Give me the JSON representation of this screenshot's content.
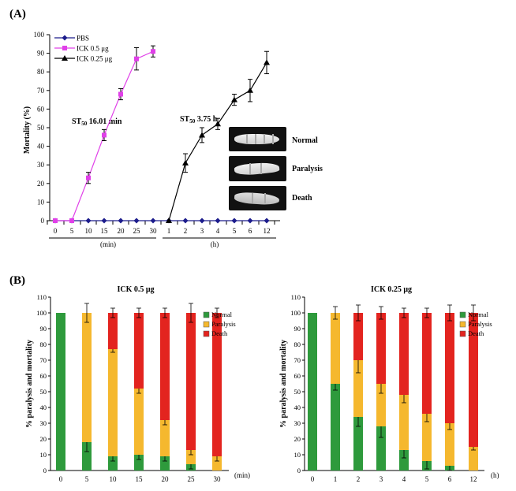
{
  "panel_a": {
    "label": "(A)",
    "ylabel": "Mortality  (%)",
    "yticks": [
      "0",
      "10",
      "20",
      "30",
      "40",
      "50",
      "60",
      "70",
      "80",
      "90",
      "100"
    ],
    "min_ticks": [
      "0",
      "5",
      "10",
      "15",
      "20",
      "25",
      "30"
    ],
    "h_ticks": [
      "1",
      "2",
      "3",
      "4",
      "5",
      "6",
      "12"
    ],
    "min_unit": "(min)",
    "h_unit": "(h)",
    "st50_left": {
      "prefix": "ST",
      "sub": "50",
      "value": " 16.01 min"
    },
    "st50_right": {
      "prefix": "ST",
      "sub": "50",
      "value": " 3.75 h"
    },
    "photo_labels": [
      "Normal",
      "Paralysis",
      "Death"
    ]
  },
  "panel_b": {
    "label": "(B)",
    "ylabel": "% paralysis and mortality",
    "yticks": [
      "0",
      "10",
      "20",
      "30",
      "40",
      "50",
      "60",
      "70",
      "80",
      "90",
      "100",
      "110"
    ],
    "left": {
      "title": "ICK 0.5 μg",
      "xticks": [
        "0",
        "5",
        "10",
        "15",
        "20",
        "25",
        "30"
      ],
      "unit": "(min)"
    },
    "right": {
      "title": "ICK 0.25 μg",
      "xticks": [
        "0",
        "1",
        "2",
        "3",
        "4",
        "5",
        "6",
        "12"
      ],
      "unit": "(h)"
    },
    "legend": [
      "Normal",
      "Paralysis",
      "Death"
    ]
  },
  "colors": {
    "pbs": "#1c1c8c",
    "ick05": "#e040e8",
    "ick025": "#000000",
    "normal": "#2e9a3c",
    "paralysis": "#f5b82e",
    "death": "#e3241f"
  },
  "chart_data": [
    {
      "type": "line",
      "title": "",
      "ylabel": "Mortality  (%)",
      "ylim": [
        0,
        100
      ],
      "x": [
        "0",
        "5",
        "10",
        "15",
        "20",
        "25",
        "30",
        "1",
        "2",
        "3",
        "4",
        "5",
        "6",
        "12"
      ],
      "series": [
        {
          "name": "PBS",
          "values": [
            0,
            0,
            0,
            0,
            0,
            0,
            0,
            0,
            0,
            0,
            0,
            0,
            0,
            0
          ],
          "errors": [
            0,
            0,
            0,
            0,
            0,
            0,
            0,
            0,
            0,
            0,
            0,
            0,
            0,
            0
          ]
        },
        {
          "name": "ICK 0.5 μg",
          "values": [
            0,
            0,
            23,
            46,
            68,
            87,
            91,
            null,
            null,
            null,
            null,
            null,
            null,
            null
          ],
          "errors": [
            0,
            0,
            3,
            3,
            3,
            6,
            3,
            null,
            null,
            null,
            null,
            null,
            null,
            null
          ]
        },
        {
          "name": "ICK 0.25 μg",
          "values": [
            null,
            null,
            null,
            null,
            null,
            null,
            null,
            0,
            31,
            46,
            52,
            65,
            70,
            85
          ],
          "errors": [
            null,
            null,
            null,
            null,
            null,
            null,
            null,
            0,
            5,
            4,
            3,
            3,
            6,
            6
          ]
        }
      ]
    },
    {
      "type": "bar",
      "stacked": true,
      "title": "ICK 0.5 μg",
      "ylabel": "% paralysis and mortality",
      "ylim": [
        0,
        110
      ],
      "categories": [
        "0",
        "5",
        "10",
        "15",
        "20",
        "25",
        "30"
      ],
      "series": [
        {
          "name": "Normal",
          "values": [
            100,
            18,
            9,
            10,
            9,
            4,
            0
          ]
        },
        {
          "name": "Paralysis",
          "values": [
            0,
            82,
            68,
            42,
            23,
            9,
            9
          ]
        },
        {
          "name": "Death",
          "values": [
            0,
            0,
            23,
            48,
            68,
            87,
            91
          ]
        }
      ],
      "errors": {
        "Normal": [
          0,
          6,
          3,
          3,
          3,
          3,
          0
        ],
        "Paralysis": [
          0,
          6,
          2,
          3,
          3,
          3,
          3
        ],
        "Death": [
          0,
          0,
          3,
          3,
          3,
          6,
          3
        ]
      }
    },
    {
      "type": "bar",
      "stacked": true,
      "title": "ICK 0.25 μg",
      "ylabel": "% paralysis and mortality",
      "ylim": [
        0,
        110
      ],
      "categories": [
        "0",
        "1",
        "2",
        "3",
        "4",
        "5",
        "6",
        "12"
      ],
      "series": [
        {
          "name": "Normal",
          "values": [
            100,
            55,
            34,
            28,
            13,
            6,
            3,
            0
          ]
        },
        {
          "name": "Paralysis",
          "values": [
            0,
            45,
            36,
            27,
            35,
            30,
            27,
            15
          ]
        },
        {
          "name": "Death",
          "values": [
            0,
            0,
            30,
            45,
            52,
            64,
            70,
            85
          ]
        }
      ],
      "errors": {
        "Normal": [
          0,
          4,
          6,
          7,
          5,
          5,
          3,
          0
        ],
        "Paralysis": [
          0,
          4,
          8,
          6,
          5,
          5,
          4,
          2
        ],
        "Death": [
          0,
          0,
          5,
          4,
          3,
          3,
          5,
          5
        ]
      }
    }
  ]
}
